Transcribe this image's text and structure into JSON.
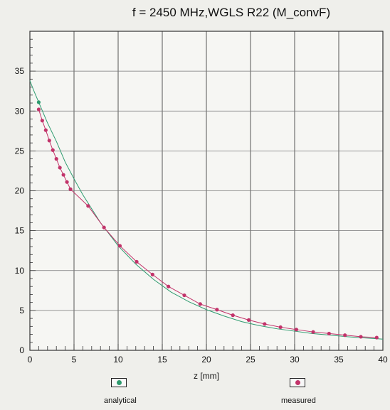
{
  "chart_data": {
    "type": "line",
    "title": "f = 2450 MHz,WGLS R22 (M_convF)",
    "xlabel": "z [mm]",
    "ylabel": "",
    "xlim": [
      0,
      40
    ],
    "ylim": [
      0,
      40
    ],
    "x_ticks": [
      0,
      5,
      10,
      15,
      20,
      25,
      30,
      35,
      40
    ],
    "y_ticks": [
      0,
      5,
      10,
      15,
      20,
      25,
      30,
      35
    ],
    "grid": true,
    "legend_position": "bottom",
    "series": [
      {
        "name": "analytical",
        "color": "#2e9b6f",
        "x": [
          0.0,
          0.5,
          1.0,
          2.0,
          3.0,
          4.0,
          5.0,
          6.0,
          8.0,
          10.0,
          12.0,
          14.0,
          16.0,
          18.0,
          20.0,
          22.0,
          24.0,
          26.0,
          28.0,
          30.0,
          32.0,
          34.0,
          36.0,
          38.0,
          40.0
        ],
        "values": [
          33.8,
          32.4,
          31.1,
          28.5,
          26.2,
          23.6,
          21.5,
          19.5,
          16.0,
          13.1,
          10.8,
          8.9,
          7.3,
          6.1,
          5.1,
          4.3,
          3.6,
          3.1,
          2.7,
          2.4,
          2.1,
          1.9,
          1.7,
          1.55,
          1.4
        ]
      },
      {
        "name": "measured",
        "color": "#c2336a",
        "x": [
          1.0,
          1.4,
          1.8,
          2.2,
          2.6,
          3.0,
          3.4,
          3.8,
          4.2,
          4.6,
          6.6,
          8.4,
          10.2,
          12.1,
          13.9,
          15.7,
          17.5,
          19.3,
          21.2,
          23.0,
          24.8,
          26.6,
          28.4,
          30.2,
          32.1,
          33.9,
          35.7,
          37.5,
          39.3
        ],
        "values": [
          30.2,
          28.8,
          27.6,
          26.3,
          25.1,
          24.0,
          22.9,
          22.0,
          21.1,
          20.2,
          18.1,
          15.4,
          13.1,
          11.1,
          9.5,
          8.0,
          6.9,
          5.8,
          5.1,
          4.4,
          3.8,
          3.3,
          2.9,
          2.6,
          2.3,
          2.1,
          1.9,
          1.7,
          1.6
        ]
      }
    ]
  }
}
